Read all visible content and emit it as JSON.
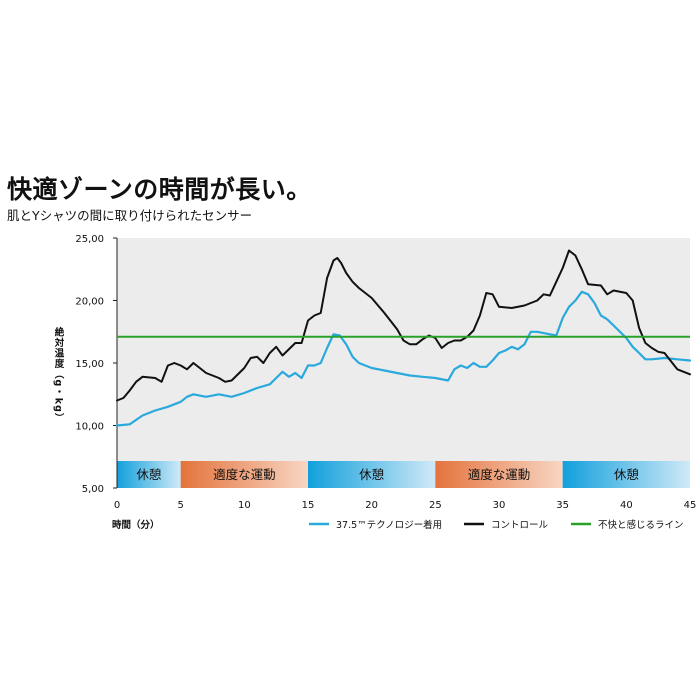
{
  "header": {
    "title": "快適ゾーンの時間が長い。",
    "subtitle": "肌とYシャツの間に取り付けられたセンサー"
  },
  "colors": {
    "plot_bg": "#ececec",
    "series_375": "#2aa9dd",
    "series_control": "#111111",
    "threshold": "#2aa12a",
    "rest_zone": "#1aa3dd",
    "exercise_zone": "#e57a45"
  },
  "chart_data": {
    "type": "line",
    "title": "快適ゾーンの時間が長い。",
    "subtitle": "肌とYシャツの間に取り付けられたセンサー",
    "xlabel": "時間（分）",
    "ylabel": "絶対温度（g・kg）",
    "xlim": [
      0,
      45
    ],
    "ylim": [
      5,
      25
    ],
    "x_ticks": [
      0,
      5,
      10,
      15,
      20,
      25,
      30,
      35,
      40,
      45
    ],
    "x_tick_labels": [
      "0",
      "5",
      "10",
      "15",
      "20",
      "25",
      "30",
      "35",
      "40",
      "45"
    ],
    "y_ticks": [
      5,
      10,
      15,
      20,
      25
    ],
    "y_tick_labels": [
      "5,00",
      "10,00",
      "15,00",
      "20,00",
      "25,00"
    ],
    "threshold": {
      "name": "不快と感じるライン",
      "value": 17.1
    },
    "zones": [
      {
        "label": "休憩",
        "start": 0,
        "end": 5,
        "kind": "rest"
      },
      {
        "label": "適度な運動",
        "start": 5,
        "end": 15,
        "kind": "exercise"
      },
      {
        "label": "休憩",
        "start": 15,
        "end": 25,
        "kind": "rest"
      },
      {
        "label": "適度な運動",
        "start": 25,
        "end": 35,
        "kind": "exercise"
      },
      {
        "label": "休憩",
        "start": 35,
        "end": 45,
        "kind": "rest"
      }
    ],
    "legend": [
      "37.5™テクノロジー着用",
      "コントロール",
      "不快と感じるライン"
    ],
    "series": [
      {
        "name": "37.5™テクノロジー着用",
        "points": [
          [
            0,
            10.0
          ],
          [
            1,
            10.1
          ],
          [
            2,
            10.8
          ],
          [
            3,
            11.2
          ],
          [
            4,
            11.5
          ],
          [
            5,
            11.9
          ],
          [
            5.5,
            12.3
          ],
          [
            6,
            12.5
          ],
          [
            7,
            12.3
          ],
          [
            8,
            12.5
          ],
          [
            9,
            12.3
          ],
          [
            10,
            12.6
          ],
          [
            11,
            13.0
          ],
          [
            12,
            13.3
          ],
          [
            12.5,
            13.8
          ],
          [
            13,
            14.3
          ],
          [
            13.5,
            13.9
          ],
          [
            14,
            14.2
          ],
          [
            14.5,
            13.8
          ],
          [
            15,
            14.8
          ],
          [
            15.5,
            14.8
          ],
          [
            16,
            15.0
          ],
          [
            16.5,
            16.2
          ],
          [
            17,
            17.3
          ],
          [
            17.5,
            17.2
          ],
          [
            18,
            16.5
          ],
          [
            18.5,
            15.5
          ],
          [
            19,
            15.0
          ],
          [
            20,
            14.6
          ],
          [
            21,
            14.4
          ],
          [
            22,
            14.2
          ],
          [
            23,
            14.0
          ],
          [
            24,
            13.9
          ],
          [
            25,
            13.8
          ],
          [
            26,
            13.6
          ],
          [
            26.5,
            14.5
          ],
          [
            27,
            14.8
          ],
          [
            27.5,
            14.6
          ],
          [
            28,
            15.0
          ],
          [
            28.5,
            14.7
          ],
          [
            29,
            14.7
          ],
          [
            29.5,
            15.2
          ],
          [
            30,
            15.8
          ],
          [
            30.5,
            16.0
          ],
          [
            31,
            16.3
          ],
          [
            31.5,
            16.1
          ],
          [
            32,
            16.5
          ],
          [
            32.5,
            17.5
          ],
          [
            33,
            17.5
          ],
          [
            34,
            17.3
          ],
          [
            34.5,
            17.2
          ],
          [
            35,
            18.6
          ],
          [
            35.5,
            19.5
          ],
          [
            36,
            20.0
          ],
          [
            36.5,
            20.7
          ],
          [
            37,
            20.5
          ],
          [
            37.5,
            19.8
          ],
          [
            38,
            18.8
          ],
          [
            38.5,
            18.5
          ],
          [
            39,
            18.0
          ],
          [
            40,
            17.0
          ],
          [
            40.5,
            16.3
          ],
          [
            41,
            15.8
          ],
          [
            41.5,
            15.3
          ],
          [
            42,
            15.3
          ],
          [
            43,
            15.4
          ],
          [
            44,
            15.3
          ],
          [
            45,
            15.2
          ]
        ]
      },
      {
        "name": "コントロール",
        "points": [
          [
            0,
            12.0
          ],
          [
            0.5,
            12.2
          ],
          [
            1,
            12.8
          ],
          [
            1.5,
            13.5
          ],
          [
            2,
            13.9
          ],
          [
            3,
            13.8
          ],
          [
            3.5,
            13.5
          ],
          [
            4,
            14.8
          ],
          [
            4.5,
            15.0
          ],
          [
            5,
            14.8
          ],
          [
            5.5,
            14.5
          ],
          [
            6,
            15.0
          ],
          [
            6.5,
            14.6
          ],
          [
            7,
            14.2
          ],
          [
            8,
            13.8
          ],
          [
            8.5,
            13.5
          ],
          [
            9,
            13.6
          ],
          [
            10,
            14.6
          ],
          [
            10.5,
            15.4
          ],
          [
            11,
            15.5
          ],
          [
            11.5,
            15.0
          ],
          [
            12,
            15.8
          ],
          [
            12.5,
            16.3
          ],
          [
            13,
            15.6
          ],
          [
            14,
            16.6
          ],
          [
            14.5,
            16.6
          ],
          [
            15,
            18.4
          ],
          [
            15.5,
            18.8
          ],
          [
            16,
            19.0
          ],
          [
            16.5,
            21.8
          ],
          [
            17,
            23.2
          ],
          [
            17.3,
            23.4
          ],
          [
            17.6,
            23.0
          ],
          [
            18,
            22.2
          ],
          [
            18.5,
            21.5
          ],
          [
            19,
            21.0
          ],
          [
            19.5,
            20.6
          ],
          [
            20,
            20.2
          ],
          [
            21,
            19.0
          ],
          [
            22,
            17.7
          ],
          [
            22.5,
            16.8
          ],
          [
            23,
            16.5
          ],
          [
            23.5,
            16.5
          ],
          [
            24,
            16.9
          ],
          [
            24.5,
            17.2
          ],
          [
            25,
            17.0
          ],
          [
            25.5,
            16.2
          ],
          [
            26,
            16.6
          ],
          [
            26.5,
            16.8
          ],
          [
            27,
            16.8
          ],
          [
            27.5,
            17.1
          ],
          [
            28,
            17.6
          ],
          [
            28.5,
            18.8
          ],
          [
            29,
            20.6
          ],
          [
            29.5,
            20.5
          ],
          [
            30,
            19.5
          ],
          [
            31,
            19.4
          ],
          [
            32,
            19.6
          ],
          [
            33,
            20.0
          ],
          [
            33.5,
            20.5
          ],
          [
            34,
            20.4
          ],
          [
            34.5,
            21.5
          ],
          [
            35,
            22.6
          ],
          [
            35.5,
            24.0
          ],
          [
            36,
            23.6
          ],
          [
            36.5,
            22.5
          ],
          [
            37,
            21.3
          ],
          [
            38,
            21.2
          ],
          [
            38.5,
            20.5
          ],
          [
            39,
            20.8
          ],
          [
            40,
            20.6
          ],
          [
            40.5,
            20.0
          ],
          [
            41,
            17.8
          ],
          [
            41.5,
            16.6
          ],
          [
            42,
            16.2
          ],
          [
            42.5,
            15.9
          ],
          [
            43,
            15.8
          ],
          [
            44,
            14.5
          ],
          [
            45,
            14.1
          ]
        ]
      }
    ]
  }
}
